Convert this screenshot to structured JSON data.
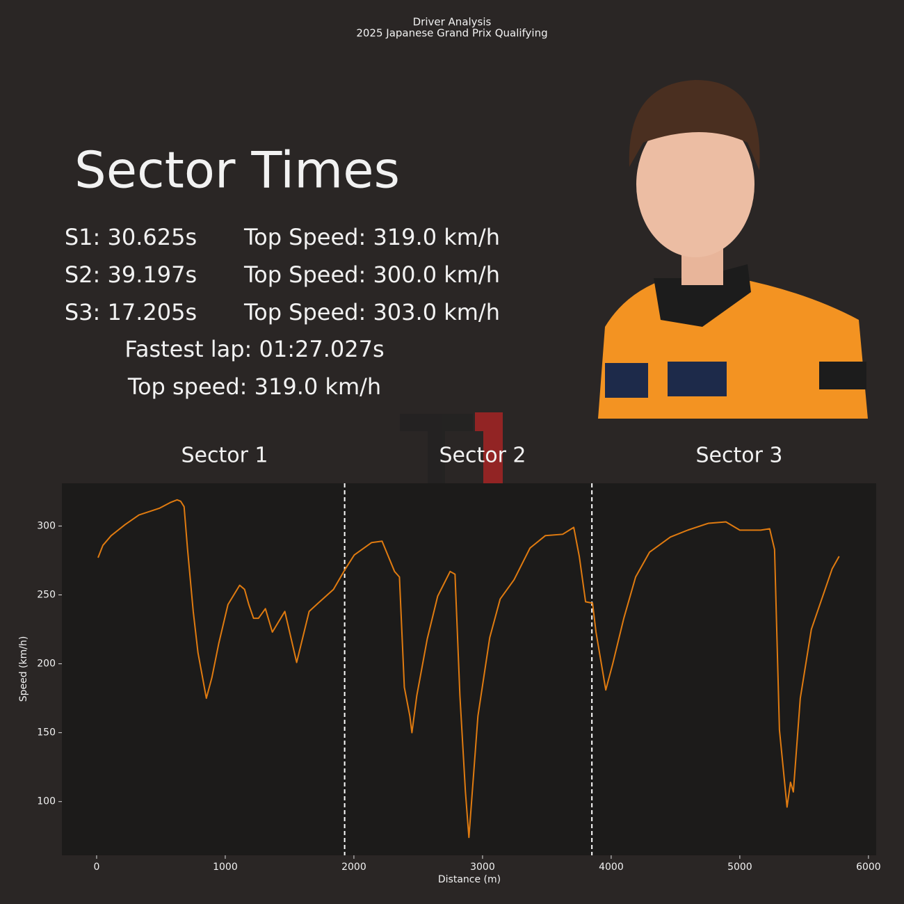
{
  "panel": {
    "heading": "Sector Times",
    "sectors": [
      {
        "time": "S1: 30.625s",
        "speed": "Top Speed: 319.0 km/h"
      },
      {
        "time": "S2: 39.197s",
        "speed": "Top Speed: 300.0 km/h"
      },
      {
        "time": "S3: 17.205s",
        "speed": "Top Speed: 303.0 km/h"
      }
    ],
    "fastest_lap": "Fastest lap: 01:27.027s",
    "top_speed": "Top speed: 319.0 km/h"
  },
  "chart_data": {
    "type": "line",
    "title": "Driver Analysis",
    "subtitle": "2025 Japanese Grand Prix Qualifying",
    "x_label": "Distance (m)",
    "y_label": "Speed (km/h)",
    "annotations": [
      "Sector 1",
      "Sector 2",
      "Sector 3"
    ],
    "sector_boundaries": [
      1928,
      3850
    ],
    "xlim": [
      -270,
      6060
    ],
    "ylim": [
      61,
      331
    ],
    "xticks": [
      0,
      1000,
      2000,
      3000,
      4000,
      5000,
      6000
    ],
    "yticks": [
      100,
      150,
      200,
      250,
      300
    ],
    "x": [
      11,
      49,
      113,
      221,
      329,
      491,
      572,
      626,
      653,
      680,
      707,
      751,
      788,
      853,
      896,
      950,
      1021,
      1112,
      1150,
      1183,
      1220,
      1258,
      1312,
      1366,
      1463,
      1555,
      1652,
      1722,
      1841,
      1928,
      2003,
      2138,
      2219,
      2316,
      2354,
      2392,
      2435,
      2451,
      2489,
      2570,
      2651,
      2748,
      2786,
      2824,
      2867,
      2894,
      2964,
      3056,
      3137,
      3245,
      3369,
      3488,
      3623,
      3709,
      3752,
      3801,
      3855,
      3882,
      3958,
      4012,
      4098,
      4190,
      4298,
      4460,
      4595,
      4757,
      4892,
      5000,
      5162,
      5232,
      5270,
      5308,
      5367,
      5394,
      5416,
      5470,
      5556,
      5718,
      5772
    ],
    "series": [
      {
        "name": "Speed",
        "color": "#e07b10",
        "values": [
          277,
          286,
          293,
          301,
          308,
          313,
          317,
          319,
          318,
          314,
          283,
          238,
          208,
          175,
          190,
          215,
          243,
          257,
          254,
          243,
          233,
          233,
          240,
          223,
          238,
          201,
          238,
          244,
          254,
          268,
          279,
          288,
          289,
          267,
          263,
          183,
          162,
          150,
          177,
          218,
          249,
          267,
          265,
          177,
          107,
          74,
          162,
          219,
          247,
          261,
          284,
          293,
          294,
          299,
          278,
          245,
          244,
          223,
          181,
          200,
          233,
          263,
          281,
          292,
          297,
          302,
          303,
          297,
          297,
          298,
          283,
          152,
          96,
          114,
          107,
          175,
          225,
          269,
          278
        ]
      }
    ]
  }
}
